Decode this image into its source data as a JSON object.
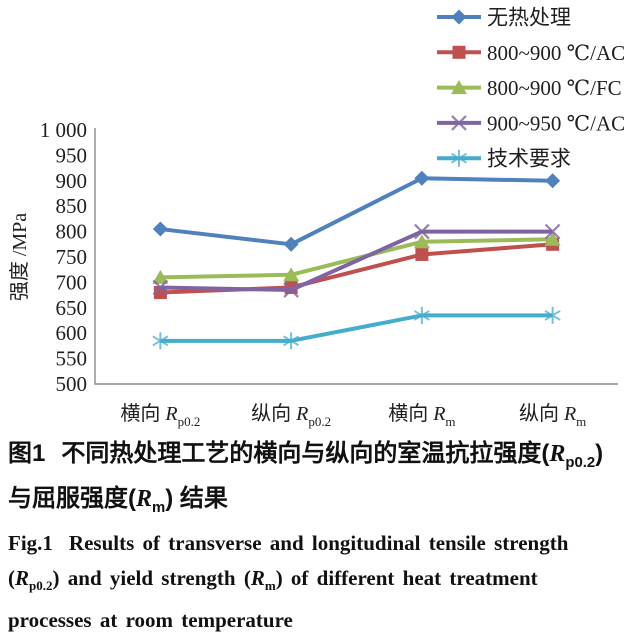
{
  "chart_data": {
    "type": "line",
    "title": "",
    "ylabel": "强度 /MPa",
    "ylim": [
      500,
      1000
    ],
    "ytick_step": 50,
    "ytick_labels": [
      "500",
      "550",
      "600",
      "650",
      "700",
      "750",
      "800",
      "850",
      "900",
      "950",
      "1 000"
    ],
    "categories": [
      {
        "prefix": "横向 ",
        "symbol": "R",
        "sub": "p0.2"
      },
      {
        "prefix": "纵向 ",
        "symbol": "R",
        "sub": "p0.2"
      },
      {
        "prefix": "横向 ",
        "symbol": "R",
        "sub": "m"
      },
      {
        "prefix": "纵向 ",
        "symbol": "R",
        "sub": "m"
      }
    ],
    "grid": false,
    "legend_position": "top-right",
    "series": [
      {
        "name": "无热处理",
        "color": "#4F81BD",
        "marker": "diamond",
        "values": [
          805,
          775,
          905,
          900
        ]
      },
      {
        "name": "800~900 ℃/AC",
        "color": "#C0504D",
        "marker": "square",
        "values": [
          680,
          690,
          755,
          775
        ]
      },
      {
        "name": "800~900 ℃/FC",
        "color": "#9BBB59",
        "marker": "triangle",
        "values": [
          710,
          715,
          780,
          785
        ]
      },
      {
        "name": "900~950 ℃/AC",
        "color": "#8064A2",
        "marker": "x",
        "values": [
          690,
          685,
          800,
          800
        ]
      },
      {
        "name": "技术要求",
        "color": "#45ACCD",
        "marker": "star",
        "values": [
          585,
          585,
          635,
          635
        ]
      }
    ]
  },
  "caption": {
    "fig_label_cn": "图1",
    "cn1": "不同热处理工艺的横向与纵向的室温抗拉强度(",
    "r": "R",
    "sub_p": "p0.2",
    "paren_close": ")",
    "cn2_a": "与屈服强度(",
    "sub_m": "m",
    "cn2_b": ") 结果",
    "fig_label_en": "Fig.1",
    "en1": "Results of transverse and longitudinal tensile strength",
    "en2_a": "(",
    "en2_b": ") and yield strength (",
    "en2_c": ") of different heat treatment",
    "en3": "processes at room temperature"
  }
}
